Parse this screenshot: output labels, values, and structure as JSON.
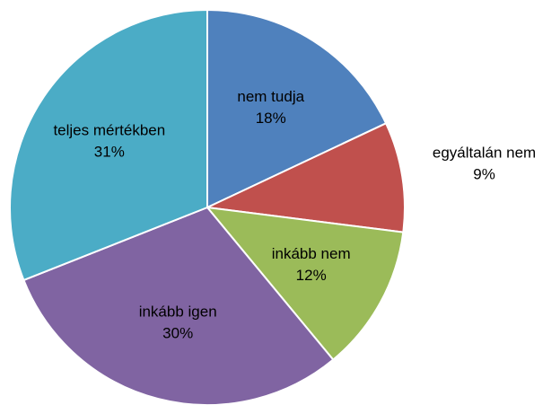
{
  "chart_data": {
    "type": "pie",
    "categories": [
      "nem tudja",
      "egyáltalán nem",
      "inkább nem",
      "inkább igen",
      "teljes mértékben"
    ],
    "values": [
      18,
      9,
      12,
      30,
      31
    ],
    "value_labels": [
      "18%",
      "9%",
      "12%",
      "30%",
      "31%"
    ],
    "colors": [
      "#4f81bd",
      "#c0504d",
      "#9bbb59",
      "#8064a2",
      "#4bacc6"
    ]
  }
}
